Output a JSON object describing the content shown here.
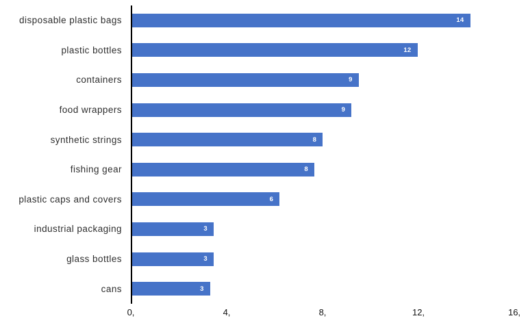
{
  "chart_data": {
    "type": "bar",
    "orientation": "horizontal",
    "title": "",
    "xlabel": "",
    "ylabel": "",
    "categories": [
      "disposable plastic bags",
      "plastic bottles",
      "containers",
      "food wrappers",
      "synthetic strings",
      "fishing gear",
      "plastic caps and covers",
      "industrial packaging",
      "glass bottles",
      "cans"
    ],
    "values": [
      14,
      12,
      9,
      9,
      8,
      8,
      6,
      3,
      3,
      3
    ],
    "values_precise": [
      14.1,
      11.9,
      9.45,
      9.15,
      7.95,
      7.6,
      6.15,
      3.4,
      3.4,
      3.25
    ],
    "xlim": [
      0,
      16
    ],
    "x_ticks": [
      {
        "value": 0,
        "label": "0,"
      },
      {
        "value": 4,
        "label": "4,"
      },
      {
        "value": 8,
        "label": "8,"
      },
      {
        "value": 12,
        "label": "12,"
      },
      {
        "value": 16,
        "label": "16,"
      }
    ],
    "grid": false,
    "legend": false,
    "value_labels_position": "inside-end",
    "bar_color": "#4673C8",
    "value_label_color": "#ffffff",
    "category_label_color": "#2e2e2e",
    "tick_label_color": "#111111",
    "axis_color": "#000000",
    "background_color": "#ffffff"
  }
}
